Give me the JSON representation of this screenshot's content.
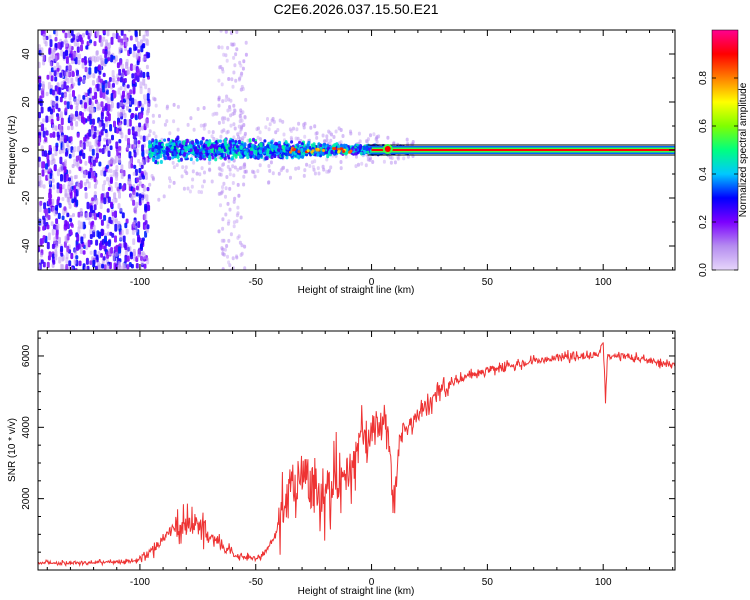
{
  "chart_data": [
    {
      "type": "heatmap",
      "title": "C2E6.2026.037.15.50.E21",
      "xlabel": "Height of straight line (km)",
      "ylabel": "Frequency (Hz)",
      "xlim": [
        -144,
        131
      ],
      "ylim": [
        -50,
        50
      ],
      "xticks": [
        -100,
        -50,
        0,
        50,
        100
      ],
      "xtick_labels": [
        "-100",
        "-50",
        "0",
        "50",
        "100"
      ],
      "yticks": [
        -40,
        -20,
        0,
        20,
        40
      ],
      "ytick_labels": [
        "-40",
        "-20",
        "0",
        "20",
        "40"
      ],
      "colorbar": {
        "label": "Normalized spectral amplitude",
        "range": [
          0,
          1
        ],
        "ticks": [
          0,
          0.2,
          0.4,
          0.6,
          0.8
        ],
        "tick_labels": [
          "0.0",
          "0.2",
          "0.4",
          "0.6",
          "0.8"
        ],
        "colors": [
          "#e6d6fa",
          "#b58cf0",
          "#7c00ff",
          "#0000ff",
          "#00c8ff",
          "#00ff80",
          "#80ff00",
          "#ffff00",
          "#ff8000",
          "#ff0000",
          "#ff0090"
        ]
      },
      "features": {
        "broadband_noise_x": [
          -144,
          -96
        ],
        "broadband_noise_amplitude": 0.15,
        "narrowing_band_x": [
          -96,
          18
        ],
        "narrowing_band_amplitude": 0.45,
        "center_line_x": [
          0,
          131
        ],
        "center_line_frequency": 0,
        "center_line_amplitude": 1.0,
        "sparse_column_x": [
          -66,
          -54
        ]
      }
    },
    {
      "type": "line",
      "xlabel": "Height of straight line (km)",
      "ylabel": "SNR (10 * v/v)",
      "xlim": [
        -144,
        131
      ],
      "ylim": [
        0,
        6700
      ],
      "xticks": [
        -100,
        -50,
        0,
        50,
        100
      ],
      "xtick_labels": [
        "-100",
        "-50",
        "0",
        "50",
        "100"
      ],
      "yticks": [
        2000,
        4000,
        6000
      ],
      "ytick_labels": [
        "2000",
        "4000",
        "6000"
      ],
      "color": "#ee3333",
      "series": [
        {
          "name": "SNR",
          "x": [
            -144,
            -120,
            -102,
            -98,
            -94,
            -90,
            -86,
            -82,
            -78,
            -74,
            -70,
            -66,
            -62,
            -58,
            -54,
            -50,
            -46,
            -42,
            -38,
            -34,
            -30,
            -26,
            -22,
            -18,
            -14,
            -10,
            -6,
            -2,
            2,
            6,
            8,
            10,
            12,
            14,
            18,
            22,
            26,
            30,
            40,
            50,
            60,
            70,
            80,
            90,
            98,
            100,
            101,
            102,
            104,
            110,
            120,
            131
          ],
          "y": [
            200,
            210,
            250,
            350,
            600,
            900,
            1150,
            1250,
            1300,
            1250,
            1000,
            750,
            500,
            400,
            350,
            320,
            500,
            900,
            1600,
            2500,
            2800,
            2400,
            2200,
            2300,
            2700,
            2600,
            3500,
            3700,
            4000,
            4100,
            3500,
            1500,
            3600,
            4000,
            4200,
            4500,
            4700,
            5100,
            5400,
            5600,
            5750,
            5850,
            5950,
            6000,
            6050,
            6400,
            4800,
            6100,
            5950,
            6000,
            5850,
            5750
          ]
        }
      ]
    }
  ]
}
